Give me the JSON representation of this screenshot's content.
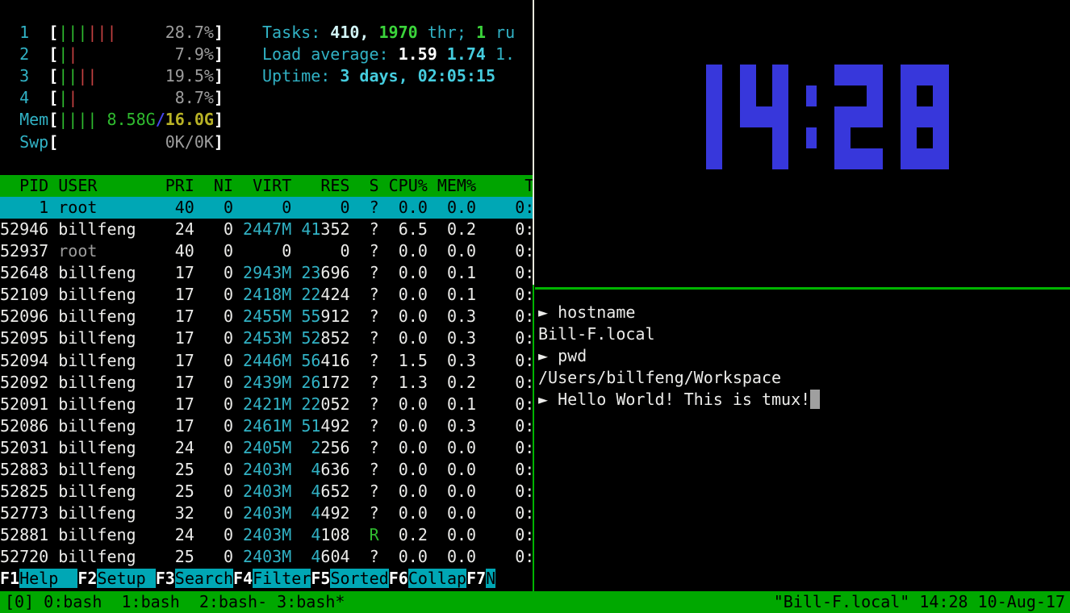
{
  "colors": {
    "clock_blue": "#3737db",
    "border_white": "#e8e8dc",
    "border_green": "#00b400",
    "status_green": "#00a800",
    "header_green": "#00a400",
    "select_cyan": "#00a7b5"
  },
  "htop": {
    "meters": [
      {
        "label": "1",
        "type": "cpu",
        "green_bars": 3,
        "red_bars": 3,
        "pct": "28.7%"
      },
      {
        "label": "2",
        "type": "cpu",
        "green_bars": 1,
        "red_bars": 1,
        "pct": "7.9%"
      },
      {
        "label": "3",
        "type": "cpu",
        "green_bars": 2,
        "red_bars": 2,
        "pct": "19.5%"
      },
      {
        "label": "4",
        "type": "cpu",
        "green_bars": 1,
        "red_bars": 1,
        "pct": "8.7%"
      },
      {
        "label": "Mem",
        "type": "mem",
        "green_bars": 4,
        "used": "8.58G",
        "slash": "/",
        "total": "16.0G"
      },
      {
        "label": "Swp",
        "type": "swp",
        "text": "0K/0K"
      }
    ],
    "info_lines": [
      [
        {
          "cls": "c",
          "t": "Tasks: "
        },
        {
          "cls": "cpale",
          "t": "410, "
        },
        {
          "cls": "gb",
          "t": "1970"
        },
        {
          "cls": "c",
          "t": " thr; "
        },
        {
          "cls": "gb",
          "t": "1"
        },
        {
          "cls": "c",
          "t": " ru"
        }
      ],
      [
        {
          "cls": "c",
          "t": "Load average: "
        },
        {
          "cls": "wb",
          "t": "1.59 "
        },
        {
          "cls": "cb",
          "t": "1.74 "
        },
        {
          "cls": "c",
          "t": "1."
        }
      ],
      [
        {
          "cls": "c",
          "t": "Uptime: "
        },
        {
          "cls": "cb",
          "t": "3 days, 02:05:15"
        }
      ]
    ],
    "columns": {
      "pid": "PID",
      "user": "USER",
      "pri": "PRI",
      "ni": "NI",
      "virt": "VIRT",
      "res": "RES",
      "s": "S",
      "cpu": "CPU%",
      "mem": "MEM%",
      "time": "T"
    },
    "processes": [
      {
        "pid": "1",
        "user": "root",
        "pri": "40",
        "ni": "0",
        "virt": "0",
        "res_hi": "",
        "res_lo": "0",
        "s": "?",
        "cpu": "0.0",
        "mem": "0.0",
        "time": "0:",
        "selected": true,
        "user_dim": false,
        "virt_cyan": false
      },
      {
        "pid": "52946",
        "user": "billfeng",
        "pri": "24",
        "ni": "0",
        "virt": "2447M",
        "res_hi": "41",
        "res_lo": "352",
        "s": "?",
        "cpu": "6.5",
        "mem": "0.2",
        "time": "0:",
        "selected": false,
        "user_dim": false,
        "virt_cyan": true
      },
      {
        "pid": "52937",
        "user": "root",
        "pri": "40",
        "ni": "0",
        "virt": "0",
        "res_hi": "",
        "res_lo": "0",
        "s": "?",
        "cpu": "0.0",
        "mem": "0.0",
        "time": "0:",
        "selected": false,
        "user_dim": true,
        "virt_cyan": false
      },
      {
        "pid": "52648",
        "user": "billfeng",
        "pri": "17",
        "ni": "0",
        "virt": "2943M",
        "res_hi": "23",
        "res_lo": "696",
        "s": "?",
        "cpu": "0.0",
        "mem": "0.1",
        "time": "0:",
        "selected": false,
        "user_dim": false,
        "virt_cyan": true
      },
      {
        "pid": "52109",
        "user": "billfeng",
        "pri": "17",
        "ni": "0",
        "virt": "2418M",
        "res_hi": "22",
        "res_lo": "424",
        "s": "?",
        "cpu": "0.0",
        "mem": "0.1",
        "time": "0:",
        "selected": false,
        "user_dim": false,
        "virt_cyan": true
      },
      {
        "pid": "52096",
        "user": "billfeng",
        "pri": "17",
        "ni": "0",
        "virt": "2455M",
        "res_hi": "55",
        "res_lo": "912",
        "s": "?",
        "cpu": "0.0",
        "mem": "0.3",
        "time": "0:",
        "selected": false,
        "user_dim": false,
        "virt_cyan": true
      },
      {
        "pid": "52095",
        "user": "billfeng",
        "pri": "17",
        "ni": "0",
        "virt": "2453M",
        "res_hi": "52",
        "res_lo": "852",
        "s": "?",
        "cpu": "0.0",
        "mem": "0.3",
        "time": "0:",
        "selected": false,
        "user_dim": false,
        "virt_cyan": true
      },
      {
        "pid": "52094",
        "user": "billfeng",
        "pri": "17",
        "ni": "0",
        "virt": "2446M",
        "res_hi": "56",
        "res_lo": "416",
        "s": "?",
        "cpu": "1.5",
        "mem": "0.3",
        "time": "0:",
        "selected": false,
        "user_dim": false,
        "virt_cyan": true
      },
      {
        "pid": "52092",
        "user": "billfeng",
        "pri": "17",
        "ni": "0",
        "virt": "2439M",
        "res_hi": "26",
        "res_lo": "172",
        "s": "?",
        "cpu": "1.3",
        "mem": "0.2",
        "time": "0:",
        "selected": false,
        "user_dim": false,
        "virt_cyan": true
      },
      {
        "pid": "52091",
        "user": "billfeng",
        "pri": "17",
        "ni": "0",
        "virt": "2421M",
        "res_hi": "22",
        "res_lo": "052",
        "s": "?",
        "cpu": "0.0",
        "mem": "0.1",
        "time": "0:",
        "selected": false,
        "user_dim": false,
        "virt_cyan": true
      },
      {
        "pid": "52086",
        "user": "billfeng",
        "pri": "17",
        "ni": "0",
        "virt": "2461M",
        "res_hi": "51",
        "res_lo": "492",
        "s": "?",
        "cpu": "0.0",
        "mem": "0.3",
        "time": "0:",
        "selected": false,
        "user_dim": false,
        "virt_cyan": true
      },
      {
        "pid": "52031",
        "user": "billfeng",
        "pri": "24",
        "ni": "0",
        "virt": "2405M",
        "res_hi": "2",
        "res_lo": "256",
        "s": "?",
        "cpu": "0.0",
        "mem": "0.0",
        "time": "0:",
        "selected": false,
        "user_dim": false,
        "virt_cyan": true
      },
      {
        "pid": "52883",
        "user": "billfeng",
        "pri": "25",
        "ni": "0",
        "virt": "2403M",
        "res_hi": "4",
        "res_lo": "636",
        "s": "?",
        "cpu": "0.0",
        "mem": "0.0",
        "time": "0:",
        "selected": false,
        "user_dim": false,
        "virt_cyan": true
      },
      {
        "pid": "52825",
        "user": "billfeng",
        "pri": "25",
        "ni": "0",
        "virt": "2403M",
        "res_hi": "4",
        "res_lo": "652",
        "s": "?",
        "cpu": "0.0",
        "mem": "0.0",
        "time": "0:",
        "selected": false,
        "user_dim": false,
        "virt_cyan": true
      },
      {
        "pid": "52773",
        "user": "billfeng",
        "pri": "32",
        "ni": "0",
        "virt": "2403M",
        "res_hi": "4",
        "res_lo": "492",
        "s": "?",
        "cpu": "0.0",
        "mem": "0.0",
        "time": "0:",
        "selected": false,
        "user_dim": false,
        "virt_cyan": true
      },
      {
        "pid": "52881",
        "user": "billfeng",
        "pri": "24",
        "ni": "0",
        "virt": "2403M",
        "res_hi": "4",
        "res_lo": "108",
        "s": "R",
        "cpu": "0.2",
        "mem": "0.0",
        "time": "0:",
        "selected": false,
        "user_dim": false,
        "virt_cyan": true
      },
      {
        "pid": "52720",
        "user": "billfeng",
        "pri": "25",
        "ni": "0",
        "virt": "2403M",
        "res_hi": "4",
        "res_lo": "604",
        "s": "?",
        "cpu": "0.0",
        "mem": "0.0",
        "time": "0:",
        "selected": false,
        "user_dim": false,
        "virt_cyan": true
      }
    ],
    "fkeys": [
      {
        "key": "F1",
        "label": "Help  "
      },
      {
        "key": "F2",
        "label": "Setup "
      },
      {
        "key": "F3",
        "label": "Search"
      },
      {
        "key": "F4",
        "label": "Filter"
      },
      {
        "key": "F5",
        "label": "Sorted"
      },
      {
        "key": "F6",
        "label": "Collap"
      },
      {
        "key": "F7",
        "label": "N"
      }
    ]
  },
  "clock": {
    "time": "14:28"
  },
  "terminal": {
    "prompt_symbol": "►",
    "lines": [
      {
        "prompt": true,
        "text": "hostname",
        "cursor": false
      },
      {
        "prompt": false,
        "text": "Bill-F.local",
        "cursor": false
      },
      {
        "prompt": true,
        "text": "pwd",
        "cursor": false
      },
      {
        "prompt": false,
        "text": "/Users/billfeng/Workspace",
        "cursor": false
      },
      {
        "prompt": true,
        "text": "Hello World! This is tmux!",
        "cursor": true
      }
    ]
  },
  "statusbar": {
    "session": "[0]",
    "windows": [
      "0:bash ",
      "1:bash ",
      "2:bash-",
      "3:bash*"
    ],
    "right": "\"Bill-F.local\" 14:28 10-Aug-17"
  }
}
